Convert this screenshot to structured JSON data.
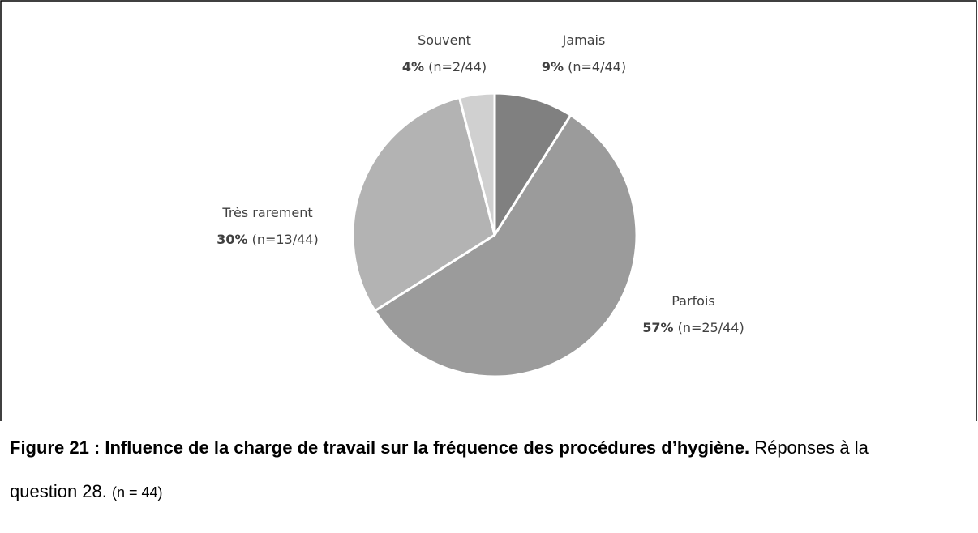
{
  "chart_data": {
    "type": "pie",
    "categories": [
      "Jamais",
      "Parfois",
      "Très rarement",
      "Souvent"
    ],
    "values": [
      9,
      57,
      30,
      4
    ],
    "value_labels": [
      "9%",
      "57%",
      "30%",
      "4%"
    ],
    "count_labels": [
      "(n=4/44)",
      "(n=25/44)",
      "(n=13/44)",
      "(n=2/44)"
    ],
    "colors": [
      "#808080",
      "#9b9b9b",
      "#b3b3b3",
      "#d0d0d0"
    ]
  },
  "caption": {
    "bold": "Figure 21 : Influence de la charge de travail sur la fréquence des procédures d’hygiène.",
    "text": "Réponses à la question 28.",
    "note": "(n = 44)"
  }
}
